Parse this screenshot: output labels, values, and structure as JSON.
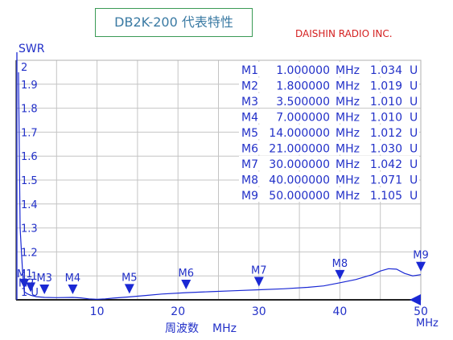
{
  "title": "DB2K-200 代表特性",
  "brand": "DAISHIN RADIO INC.",
  "colors": {
    "trace": "#1a28d4",
    "text": "#2230c8",
    "grid": "#c4c4c4",
    "title_border": "#3a9a55",
    "brand": "#d42020"
  },
  "chart_data": {
    "type": "line",
    "title": "DB2K-200 代表特性",
    "ylabel": "SWR",
    "xlabel": "周波数",
    "xunit": "MHz",
    "xlim": [
      0,
      50
    ],
    "ylim": [
      1,
      2
    ],
    "grid": true,
    "x_ticks": [
      10,
      20,
      30,
      40,
      50
    ],
    "y_ticks": [
      1.1,
      1.2,
      1.3,
      1.4,
      1.5,
      1.6,
      1.7,
      1.8,
      1.9
    ],
    "y_top_label": "2",
    "y_bottom_label": "1 U",
    "series": [
      {
        "x": [
          0.3,
          0.5,
          0.8,
          1.0,
          1.4,
          1.8,
          2.5,
          3.5,
          5,
          7,
          8,
          9,
          10,
          11,
          12,
          14,
          16,
          18,
          21,
          24,
          27,
          30,
          33,
          36,
          38,
          40,
          42,
          44,
          45,
          46,
          47,
          48,
          49,
          50
        ],
        "y": [
          1.95,
          1.3,
          1.12,
          1.034,
          1.025,
          1.019,
          1.013,
          1.01,
          1.009,
          1.01,
          1.008,
          1.004,
          1.002,
          1.004,
          1.007,
          1.012,
          1.018,
          1.024,
          1.03,
          1.034,
          1.038,
          1.042,
          1.046,
          1.052,
          1.058,
          1.071,
          1.085,
          1.105,
          1.12,
          1.13,
          1.128,
          1.11,
          1.1,
          1.105
        ]
      }
    ],
    "markers": [
      {
        "label": "M1",
        "freq": "1.000000",
        "unit": "MHz",
        "swr": "1.034",
        "flag": "U",
        "x": 1.0,
        "y": 1.034
      },
      {
        "label": "M2",
        "freq": "1.800000",
        "unit": "MHz",
        "swr": "1.019",
        "flag": "U",
        "x": 1.8,
        "y": 1.019
      },
      {
        "label": "M3",
        "freq": "3.500000",
        "unit": "MHz",
        "swr": "1.010",
        "flag": "U",
        "x": 3.5,
        "y": 1.01
      },
      {
        "label": "M4",
        "freq": "7.000000",
        "unit": "MHz",
        "swr": "1.010",
        "flag": "U",
        "x": 7.0,
        "y": 1.01
      },
      {
        "label": "M5",
        "freq": "14.000000",
        "unit": "MHz",
        "swr": "1.012",
        "flag": "U",
        "x": 14.0,
        "y": 1.012
      },
      {
        "label": "M6",
        "freq": "21.000000",
        "unit": "MHz",
        "swr": "1.030",
        "flag": "U",
        "x": 21.0,
        "y": 1.03
      },
      {
        "label": "M7",
        "freq": "30.000000",
        "unit": "MHz",
        "swr": "1.042",
        "flag": "U",
        "x": 30.0,
        "y": 1.042
      },
      {
        "label": "M8",
        "freq": "40.000000",
        "unit": "MHz",
        "swr": "1.071",
        "flag": "U",
        "x": 40.0,
        "y": 1.071
      },
      {
        "label": "M9",
        "freq": "50.000000",
        "unit": "MHz",
        "swr": "1.105",
        "flag": "U",
        "x": 50.0,
        "y": 1.105
      }
    ]
  }
}
